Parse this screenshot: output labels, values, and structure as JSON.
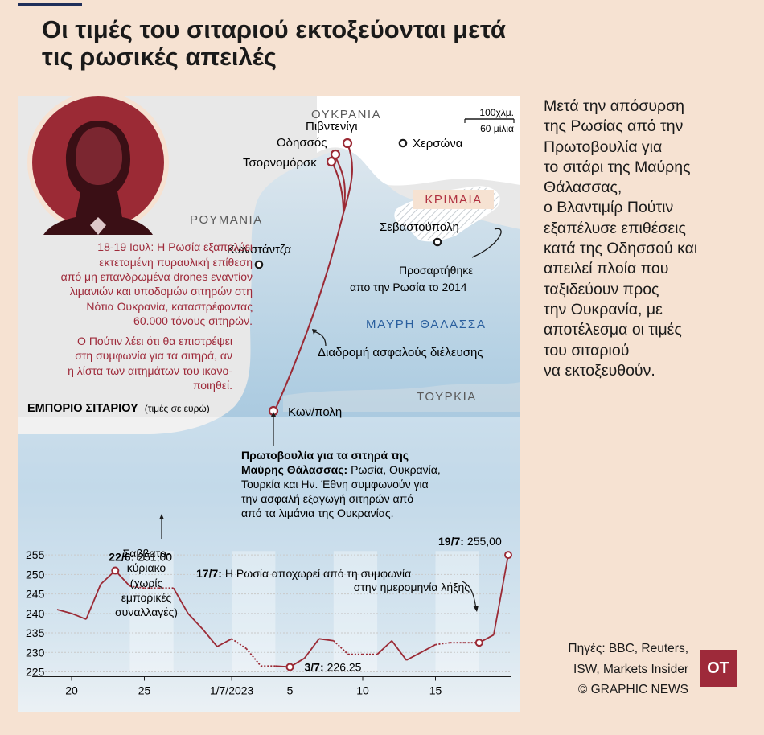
{
  "title_lines": [
    "Οι τιμές του σιταριού εκτοξεύονται μετά",
    "τις ρωσικές απειλές"
  ],
  "side_text": "Μετά την απόσυρση\nτης Ρωσίας από την\nΠρωτοβουλία για\nτο σιτάρι της Μαύρης\nΘάλασσας,\nο Βλαντιμίρ Πούτιν\nεξαπέλυσε επιθέσεις\nκατά της Οδησσού και\nαπειλεί πλοία που\nταξιδεύουν προς\nτην Ουκρανία, με\nαποτέλεσμα οι τιμές\nτου σιταριού\nνα εκτοξευθούν.",
  "sources": "Πηγές: BBC, Reuters,\nISW, Markets Insider\n© GRAPHIC NEWS",
  "logo": "OT",
  "map": {
    "ukraine": "ΟΥΚΡΑΝΙΑ",
    "romania": "ΡΟΥΜΑΝΙΑ",
    "crimea": "ΚΡΙΜΑΙΑ",
    "black_sea": "ΜΑΥΡΗ ΘΑΛΑΣΣΑ",
    "turkey": "ΤΟΥΡΚΙΑ",
    "cities": {
      "pivdennyi": "Πιβντενίγι",
      "odesa": "Οδησσός",
      "chornomorsk": "Τσορνομόρσκ",
      "kherson": "Χερσώνα",
      "sevastopol": "Σεβαστούπολη",
      "constanta": "Κωνστάντζα",
      "istanbul": "Κων/πολη"
    },
    "scale_km": "100χλμ.",
    "scale_mi": "60 μίλια",
    "annexed_lines": [
      "Προσαρτήθηκε",
      "απο την Ρωσία το 2014"
    ],
    "route_label": "Διαδρομή ασφαλούς διέλευσης",
    "attack_lines": [
      "18-19 Ιουλ: Η Ρωσία εξαπολύει",
      "εκτεταμένη πυραυλική επίθεση",
      "από μη επανδρωμένα drones εναντίον",
      "λιμανιών και υποδομών σιτηρών στη",
      "Νότια Ουκρανία, καταστρέφοντας",
      "60.000 τόνους σιτηρών."
    ],
    "putin_lines": [
      "Ο Πούτιν λέει ότι θα επιστρέψει",
      "στη συμφωνία για τα σιτηρά, αν",
      "η λίστα των αιτημάτων του ικανο-",
      "ποιηθεί."
    ]
  },
  "chart_data": {
    "type": "line",
    "title": "ΕΜΠΟΡΙΟ ΣΙΤΑΡΙΟΥ",
    "subtitle": "(τιμές σε ευρώ)",
    "xlabel": "",
    "ylabel": "",
    "ylim": [
      225,
      256
    ],
    "yticks": [
      225,
      230,
      235,
      240,
      245,
      250,
      255
    ],
    "xticks": [
      {
        "day": 0,
        "label": "20"
      },
      {
        "day": 5,
        "label": "25"
      },
      {
        "day": 11,
        "label": "1/7/2023"
      },
      {
        "day": 15,
        "label": "5"
      },
      {
        "day": 20,
        "label": "10"
      },
      {
        "day": 25,
        "label": "15"
      }
    ],
    "xlim": [
      -1,
      29
    ],
    "weekends": [
      [
        4,
        7
      ],
      [
        11,
        14
      ],
      [
        18,
        21
      ],
      [
        25,
        28
      ]
    ],
    "series": [
      {
        "values": [
          {
            "day": -1,
            "value": 241
          },
          {
            "day": 0,
            "value": 240
          },
          {
            "day": 1,
            "value": 238.5
          },
          {
            "day": 2,
            "value": 247.5
          },
          {
            "day": 3,
            "value": 251
          },
          {
            "day": 4,
            "value": 247
          },
          {
            "day": 5,
            "value": 246.5
          },
          {
            "day": 6,
            "value": 246.5
          },
          {
            "day": 7,
            "value": 246.5
          },
          {
            "day": 8,
            "value": 240
          },
          {
            "day": 9,
            "value": 236
          },
          {
            "day": 10,
            "value": 231.5
          },
          {
            "day": 11,
            "value": 233.5
          },
          {
            "day": 12,
            "value": 231
          },
          {
            "day": 13,
            "value": 226.5
          },
          {
            "day": 14,
            "value": 226.5
          },
          {
            "day": 15,
            "value": 226.25
          },
          {
            "day": 16,
            "value": 228.5
          },
          {
            "day": 17,
            "value": 233.5
          },
          {
            "day": 18,
            "value": 233
          },
          {
            "day": 19,
            "value": 229.5
          },
          {
            "day": 20,
            "value": 229.5
          },
          {
            "day": 21,
            "value": 229.5
          },
          {
            "day": 22,
            "value": 233
          },
          {
            "day": 23,
            "value": 228
          },
          {
            "day": 24,
            "value": 230
          },
          {
            "day": 25,
            "value": 232
          },
          {
            "day": 26,
            "value": 232.5
          },
          {
            "day": 27,
            "value": 232.5
          },
          {
            "day": 28,
            "value": 232.5
          },
          {
            "day": 29,
            "value": 234.5
          },
          {
            "day": 30,
            "value": 255
          }
        ]
      }
    ],
    "annotations": {
      "peak": {
        "date": "22/6:",
        "value": "251,00"
      },
      "low": {
        "date": "3/7:",
        "value": "226.25"
      },
      "last": {
        "date": "19/7:",
        "value": "255,00"
      },
      "withdraw": {
        "date": "17/7:",
        "text": "Η Ρωσία αποχωρεί από τη συμφωνία",
        "text2": "στην ημερομηνία λήξης"
      },
      "weekend_lines": [
        "Σαββατο-",
        "κύριακο",
        "(χωρίς",
        "εμπορικές",
        "συναλλαγές)"
      ],
      "initiative_bold": "Πρωτοβουλία για τα σιτηρά της",
      "initiative_bold2": "Μαύρης Θάλασσας:",
      "initiative_rest": " Ρωσία, Ουκρανία,",
      "initiative_lines": [
        "Τουρκία και Ην. Έθνη συμφωνούν για",
        "την ασφαλή εξαγωγή σιτηρών από",
        "από τα λιμάνια της Ουκρανίας."
      ]
    }
  }
}
